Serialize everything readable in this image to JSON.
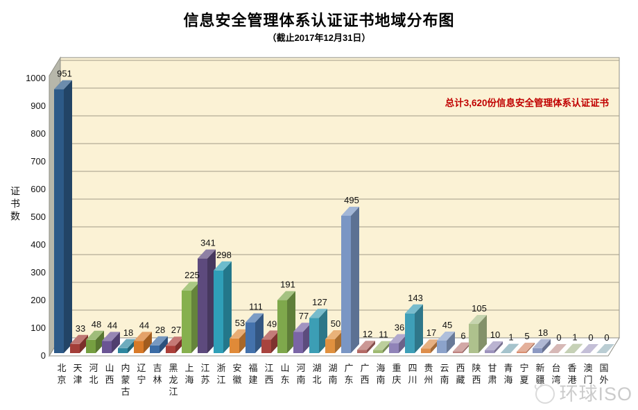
{
  "page": {
    "title": "信息安全管理体系认证证书地域分布图",
    "subtitle": "（截止2017年12月31日）"
  },
  "watermark": {
    "text": "环球ISO"
  },
  "colors": {
    "annotation_text": "#C00000",
    "plot_background": "#FBF2D5",
    "wall_side": "#B7B7AA",
    "floor": "#FFFFFF",
    "gridline": "#A09A88"
  },
  "chart_data": {
    "type": "bar",
    "title": "信息安全管理体系认证证书地域分布图",
    "subtitle": "（截止2017年12月31日）",
    "xlabel": "",
    "ylabel": "证书数",
    "ylim": [
      0,
      1000
    ],
    "ytick_step": 100,
    "grid": true,
    "legend": false,
    "style": "3d-bar",
    "annotation": "总计3,620份信息安全管理体系认证证书",
    "total": 3620,
    "categories": [
      "北京",
      "天津",
      "河北",
      "山西",
      "内蒙古",
      "辽宁",
      "吉林",
      "黑龙江",
      "上海",
      "江苏",
      "浙江",
      "安徽",
      "福建",
      "江西",
      "山东",
      "河南",
      "湖北",
      "湖南",
      "广东",
      "广西",
      "海南",
      "重庆",
      "四川",
      "贵州",
      "云南",
      "西藏",
      "陕西",
      "甘肃",
      "青海",
      "宁夏",
      "新疆",
      "台湾",
      "香港",
      "澳门",
      "国外"
    ],
    "values": [
      951,
      33,
      48,
      44,
      18,
      44,
      28,
      27,
      225,
      341,
      298,
      53,
      111,
      49,
      191,
      77,
      127,
      50,
      495,
      12,
      11,
      36,
      143,
      17,
      45,
      6,
      105,
      10,
      1,
      5,
      18,
      0,
      1,
      0,
      0
    ],
    "bar_colors": [
      "#2D5A88",
      "#A33E38",
      "#769F41",
      "#6A5494",
      "#2E87A0",
      "#D87A28",
      "#3B6CA5",
      "#AC403A",
      "#86B04E",
      "#5D4A7D",
      "#2F9FB8",
      "#E08A38",
      "#4472AC",
      "#A8433E",
      "#7FA84C",
      "#7A65A6",
      "#3C9EB5",
      "#E0913F",
      "#7A96C4",
      "#B46A66",
      "#9FBA72",
      "#9083B8",
      "#3E9FB8",
      "#DD8E4B",
      "#8CA3CB",
      "#BE8380",
      "#AEC18D",
      "#9D93BD",
      "#7FA9B6",
      "#D98E70",
      "#8C99C2",
      "#C59A97",
      "#ADBD96",
      "#ABA3C6",
      "#9DB8C0"
    ]
  }
}
